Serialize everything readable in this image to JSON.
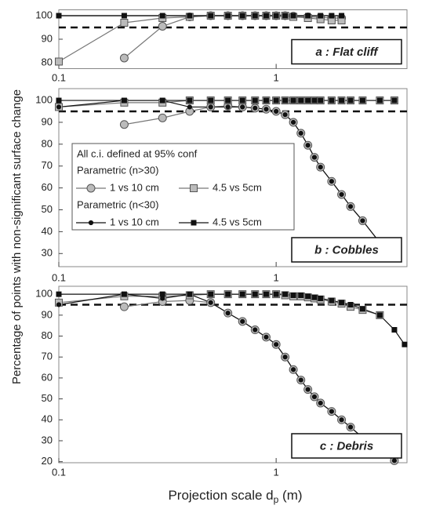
{
  "chart_data": [
    {
      "type": "line",
      "annotation": "a : Flat cliff",
      "x": [
        0.1,
        0.2,
        0.3,
        0.4,
        0.5,
        0.6,
        0.7,
        0.8,
        0.9,
        1.0,
        1.1,
        1.2,
        1.4,
        1.6,
        1.8,
        2.0
      ],
      "xlim": [
        0.1,
        4
      ],
      "xticks": [
        0.1,
        1
      ],
      "log_x": true,
      "ylim": [
        77.5,
        102.5
      ],
      "yticks": [
        80,
        90,
        100
      ],
      "reference": 95,
      "series": [
        {
          "marker": "circle",
          "color": "#bbbbbb",
          "line_color": "#777777",
          "values": [
            null,
            82,
            95.5,
            99.5,
            100,
            100,
            100,
            100,
            100,
            100,
            100,
            99.8,
            99.5,
            99.3,
            99,
            99
          ]
        },
        {
          "marker": "square",
          "color": "#bbbbbb",
          "line_color": "#777777",
          "values": [
            80.5,
            97,
            99,
            99.5,
            100,
            100,
            100,
            100,
            100,
            100,
            100,
            99.5,
            99,
            98.5,
            98,
            98
          ]
        },
        {
          "marker": "circle",
          "color": "#111111",
          "line_color": "#111111",
          "values": [
            100,
            100,
            100,
            100,
            100,
            100,
            100,
            100,
            100,
            100,
            100,
            100,
            100,
            100,
            100,
            100
          ]
        },
        {
          "marker": "square",
          "color": "#111111",
          "line_color": "#111111",
          "values": [
            100,
            100,
            100,
            100,
            100,
            100,
            100,
            100,
            100,
            100,
            100,
            100,
            100,
            100,
            100,
            100
          ]
        }
      ]
    },
    {
      "type": "line",
      "annotation": "b : Cobbles",
      "ylabel": "Percentage of points with non-significant surface change",
      "x": [
        0.1,
        0.2,
        0.3,
        0.4,
        0.5,
        0.6,
        0.7,
        0.8,
        0.9,
        1.0,
        1.1,
        1.2,
        1.3,
        1.4,
        1.5,
        1.6,
        1.8,
        2.0,
        2.2,
        2.5,
        3.0,
        3.5
      ],
      "xlim": [
        0.1,
        4
      ],
      "xticks": [
        0.1,
        1
      ],
      "log_x": true,
      "ylim": [
        24,
        105.4
      ],
      "yticks": [
        30,
        40,
        50,
        60,
        70,
        80,
        90,
        100
      ],
      "reference": 95,
      "legend": {
        "title": "All c.i. defined at 95% conf",
        "groups": [
          "Parametric (n>30)",
          "Parametric (n<30)"
        ]
      },
      "series": [
        {
          "name": "1 vs 10 cm",
          "marker": "circle",
          "color": "#bbbbbb",
          "line_color": "#777777",
          "values": [
            null,
            89,
            92,
            95,
            97,
            97.5,
            97,
            96.5,
            96,
            95,
            93.5,
            90,
            85,
            79.5,
            74,
            69.5,
            63,
            57,
            51.5,
            45,
            35,
            null
          ]
        },
        {
          "name": "4.5 vs 5cm",
          "marker": "square",
          "color": "#bbbbbb",
          "line_color": "#777777",
          "values": [
            97,
            99,
            99,
            100,
            100,
            100,
            100,
            100,
            100,
            100,
            100,
            100,
            100,
            100,
            100,
            100,
            100,
            100,
            100,
            100,
            100,
            100
          ]
        },
        {
          "name": "1 vs 10 cm",
          "marker": "circle",
          "color": "#111111",
          "line_color": "#111111",
          "values": [
            97,
            100,
            100,
            97,
            97,
            97,
            97,
            96.5,
            96,
            95,
            93.5,
            90,
            85,
            79.5,
            74,
            69.5,
            63,
            57,
            51.5,
            45,
            35,
            null
          ]
        },
        {
          "name": "4.5 vs 5cm",
          "marker": "square",
          "color": "#111111",
          "line_color": "#111111",
          "values": [
            100,
            100,
            100,
            100,
            100,
            100,
            100,
            100,
            100,
            100,
            100,
            100,
            100,
            100,
            100,
            100,
            100,
            100,
            100,
            100,
            100,
            100
          ]
        }
      ]
    },
    {
      "type": "line",
      "annotation": "c : Debris",
      "xlabel": "Projection scale d",
      "xlabel_subscript": "p",
      "xlabel_unit": " (m)",
      "x": [
        0.1,
        0.2,
        0.3,
        0.4,
        0.5,
        0.6,
        0.7,
        0.8,
        0.9,
        1.0,
        1.1,
        1.2,
        1.3,
        1.4,
        1.5,
        1.6,
        1.8,
        2.0,
        2.2,
        2.5,
        3.0,
        3.5,
        3.9
      ],
      "xlim": [
        0.1,
        4
      ],
      "xticks": [
        0.1,
        1
      ],
      "log_x": true,
      "ylim": [
        19.5,
        103.8
      ],
      "yticks": [
        20,
        30,
        40,
        50,
        60,
        70,
        80,
        90,
        100
      ],
      "reference": 95,
      "series": [
        {
          "marker": "circle",
          "color": "#bbbbbb",
          "line_color": "#777777",
          "values": [
            null,
            94,
            96.5,
            97,
            96,
            91,
            87,
            83,
            79.5,
            76,
            70,
            64,
            59,
            54.5,
            51,
            48,
            44,
            40,
            36.5,
            31.5,
            25,
            20.5,
            null
          ]
        },
        {
          "marker": "square",
          "color": "#bbbbbb",
          "line_color": "#777777",
          "values": [
            96,
            99,
            99,
            99.5,
            100,
            100,
            100,
            100,
            100,
            100,
            99.5,
            99,
            99,
            98.5,
            98,
            97.5,
            96.5,
            95.5,
            94,
            92.5,
            90,
            null,
            null
          ]
        },
        {
          "marker": "circle",
          "color": "#111111",
          "line_color": "#111111",
          "values": [
            95,
            100,
            98,
            100,
            96,
            91,
            87,
            83,
            79.5,
            76,
            70,
            64,
            59,
            54.5,
            51,
            48,
            44,
            40,
            36.5,
            31.5,
            25,
            20.5,
            null
          ]
        },
        {
          "marker": "square",
          "color": "#111111",
          "line_color": "#111111",
          "values": [
            100,
            100,
            100,
            100,
            100,
            100,
            100,
            100,
            100,
            100,
            100,
            99.5,
            99.5,
            99,
            98.5,
            98,
            97,
            96,
            95,
            93,
            90,
            83,
            76
          ]
        }
      ]
    }
  ]
}
